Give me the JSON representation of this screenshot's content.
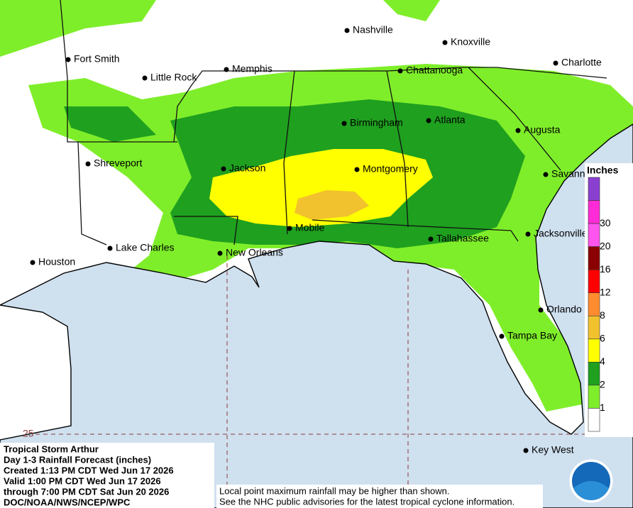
{
  "map": {
    "cities": [
      "Nashville",
      "Knoxville",
      "Fort Smith",
      "Charlotte",
      "Little Rock",
      "Memphis",
      "Chattanooga",
      "Birmingham",
      "Atlanta",
      "Augusta",
      "Shreveport",
      "Jackson",
      "Montgomery",
      "Savannah",
      "Mobile",
      "Tallahassee",
      "Jacksonville",
      "Lake Charles",
      "New Orleans",
      "Houston",
      "Orlando",
      "Tampa Bay",
      "Key West"
    ],
    "latitude_label": "25"
  },
  "legend": {
    "title": "Inches",
    "ticks": [
      1,
      2,
      4,
      6,
      8,
      12,
      16,
      20,
      30
    ],
    "colors": [
      "#ffffff",
      "#7fee2a",
      "#1fa01f",
      "#ffff00",
      "#f2c12e",
      "#ff8c2e",
      "#ff0000",
      "#8b0000",
      "#ff55ee",
      "#ff2bd6",
      "#8a3fd1"
    ]
  },
  "info": {
    "lines": [
      "Tropical Storm Arthur",
      "Day 1-3 Rainfall Forecast (inches)",
      "Created 1:13 PM CDT Wed Jun 17 2026",
      "Valid 1:00 PM CDT Wed Jun 17 2026",
      "through 7:00 PM CDT Sat Jun 20 2026",
      "DOC/NOAA/NWS/NCEP/WPC"
    ]
  },
  "notes": [
    "Local point maximum rainfall may be higher than shown.",
    "See the NHC public advisories for the latest tropical cyclone information."
  ]
}
